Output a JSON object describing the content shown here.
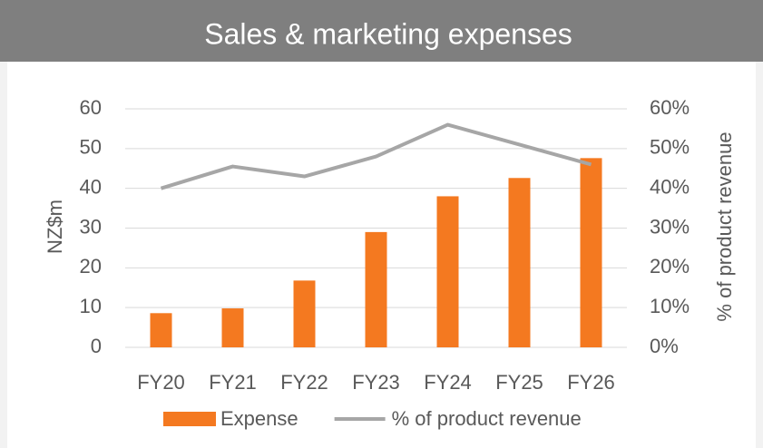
{
  "chart_data": {
    "type": "combo",
    "title": "Sales & marketing expenses",
    "categories": [
      "FY20",
      "FY21",
      "FY22",
      "FY23",
      "FY24",
      "FY25",
      "FY26"
    ],
    "series": [
      {
        "name": "Expense",
        "type": "bar",
        "color": "#f47920",
        "axis": "y",
        "values": [
          8.6,
          9.8,
          16.8,
          29,
          38,
          42.6,
          47.6
        ]
      },
      {
        "name": "% of product revenue",
        "type": "line",
        "color": "#a6a6a6",
        "axis": "y2",
        "values": [
          40,
          45.5,
          43,
          48,
          56,
          51,
          46
        ]
      }
    ],
    "ylabel": "NZ$m",
    "y2label": "% of product revenue",
    "ylim": [
      0,
      60
    ],
    "yticks": [
      0,
      10,
      20,
      30,
      40,
      50,
      60
    ],
    "y2lim": [
      0,
      60
    ],
    "y2ticks": [
      {
        "value": 0,
        "label": "0%"
      },
      {
        "value": 10,
        "label": "10%"
      },
      {
        "value": 20,
        "label": "20%"
      },
      {
        "value": 30,
        "label": "30%"
      },
      {
        "value": 40,
        "label": "40%"
      },
      {
        "value": 50,
        "label": "50%"
      },
      {
        "value": 60,
        "label": "60%"
      }
    ],
    "grid": true,
    "legend": "bottom"
  }
}
